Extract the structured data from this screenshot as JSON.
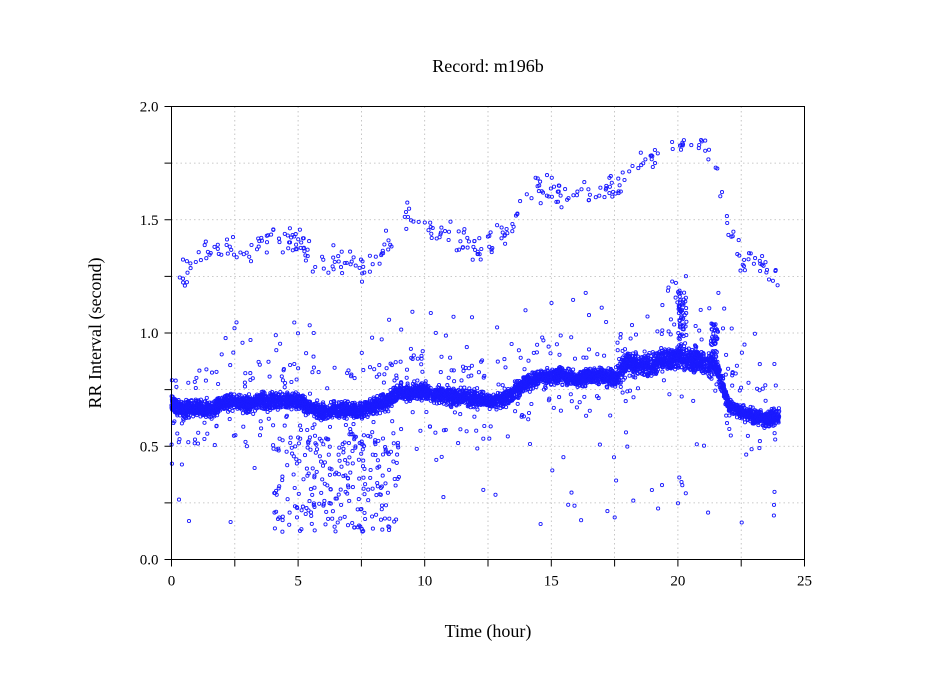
{
  "chart_data": {
    "type": "scatter",
    "title": "Record:  m196b",
    "xlabel": "Time (hour)",
    "ylabel": "RR Interval (second)",
    "xlim": [
      0,
      25
    ],
    "ylim": [
      0.0,
      2.0
    ],
    "x_ticks": [
      "0",
      "5",
      "10",
      "15",
      "20",
      "25"
    ],
    "y_ticks": [
      "0.0",
      "0.5",
      "1.0",
      "1.5",
      "2.0"
    ],
    "grid": true,
    "marker_color": "#1a1aff",
    "series": [
      {
        "main_band": [
          [
            0.0,
            0.69
          ],
          [
            0.5,
            0.66
          ],
          [
            1.0,
            0.67
          ],
          [
            1.5,
            0.66
          ],
          [
            2.0,
            0.69
          ],
          [
            2.5,
            0.7
          ],
          [
            3.0,
            0.68
          ],
          [
            3.5,
            0.7
          ],
          [
            4.0,
            0.7
          ],
          [
            4.5,
            0.7
          ],
          [
            5.0,
            0.7
          ],
          [
            5.5,
            0.67
          ],
          [
            6.0,
            0.65
          ],
          [
            6.5,
            0.66
          ],
          [
            7.0,
            0.66
          ],
          [
            7.5,
            0.66
          ],
          [
            8.0,
            0.68
          ],
          [
            8.5,
            0.7
          ],
          [
            9.0,
            0.74
          ],
          [
            9.5,
            0.74
          ],
          [
            10.0,
            0.74
          ],
          [
            10.5,
            0.73
          ],
          [
            11.0,
            0.72
          ],
          [
            11.5,
            0.72
          ],
          [
            12.0,
            0.71
          ],
          [
            12.5,
            0.7
          ],
          [
            13.0,
            0.7
          ],
          [
            13.5,
            0.74
          ],
          [
            14.0,
            0.78
          ],
          [
            14.5,
            0.8
          ],
          [
            15.0,
            0.81
          ],
          [
            15.5,
            0.81
          ],
          [
            16.0,
            0.8
          ],
          [
            16.5,
            0.81
          ],
          [
            17.0,
            0.81
          ],
          [
            17.5,
            0.8
          ],
          [
            18.0,
            0.87
          ],
          [
            18.5,
            0.86
          ],
          [
            19.0,
            0.86
          ],
          [
            19.5,
            0.88
          ],
          [
            20.0,
            0.89
          ],
          [
            20.5,
            0.88
          ],
          [
            21.0,
            0.87
          ],
          [
            21.5,
            0.86
          ],
          [
            22.0,
            0.68
          ],
          [
            22.5,
            0.65
          ],
          [
            23.0,
            0.63
          ],
          [
            23.5,
            0.62
          ],
          [
            24.0,
            0.63
          ]
        ],
        "upper_band": [
          [
            0.3,
            1.25
          ],
          [
            0.7,
            1.3
          ],
          [
            1.0,
            1.32
          ],
          [
            1.5,
            1.36
          ],
          [
            2.0,
            1.4
          ],
          [
            2.5,
            1.37
          ],
          [
            3.0,
            1.35
          ],
          [
            3.5,
            1.4
          ],
          [
            4.0,
            1.42
          ],
          [
            4.5,
            1.4
          ],
          [
            5.0,
            1.42
          ],
          [
            5.5,
            1.34
          ],
          [
            6.0,
            1.3
          ],
          [
            6.5,
            1.32
          ],
          [
            7.0,
            1.31
          ],
          [
            7.5,
            1.3
          ],
          [
            8.0,
            1.32
          ],
          [
            8.5,
            1.38
          ],
          [
            9.0,
            1.48
          ],
          [
            9.5,
            1.5
          ],
          [
            10.0,
            1.5
          ],
          [
            10.5,
            1.44
          ],
          [
            11.0,
            1.42
          ],
          [
            11.5,
            1.41
          ],
          [
            12.0,
            1.38
          ],
          [
            12.5,
            1.38
          ],
          [
            13.0,
            1.42
          ],
          [
            13.5,
            1.46
          ],
          [
            14.0,
            1.62
          ],
          [
            14.5,
            1.64
          ],
          [
            15.0,
            1.62
          ],
          [
            15.5,
            1.6
          ],
          [
            16.0,
            1.62
          ],
          [
            16.5,
            1.63
          ],
          [
            17.0,
            1.62
          ],
          [
            17.5,
            1.64
          ],
          [
            18.0,
            1.72
          ],
          [
            18.5,
            1.74
          ],
          [
            19.0,
            1.76
          ],
          [
            19.5,
            1.8
          ],
          [
            20.0,
            1.82
          ],
          [
            20.5,
            1.85
          ],
          [
            21.0,
            1.82
          ],
          [
            21.5,
            1.76
          ],
          [
            22.0,
            1.45
          ],
          [
            22.5,
            1.32
          ],
          [
            23.0,
            1.34
          ],
          [
            23.5,
            1.3
          ],
          [
            24.0,
            1.22
          ]
        ],
        "low_cluster_hours": [
          4.0,
          9.0
        ],
        "low_cluster_range": [
          0.12,
          0.55
        ]
      }
    ]
  }
}
